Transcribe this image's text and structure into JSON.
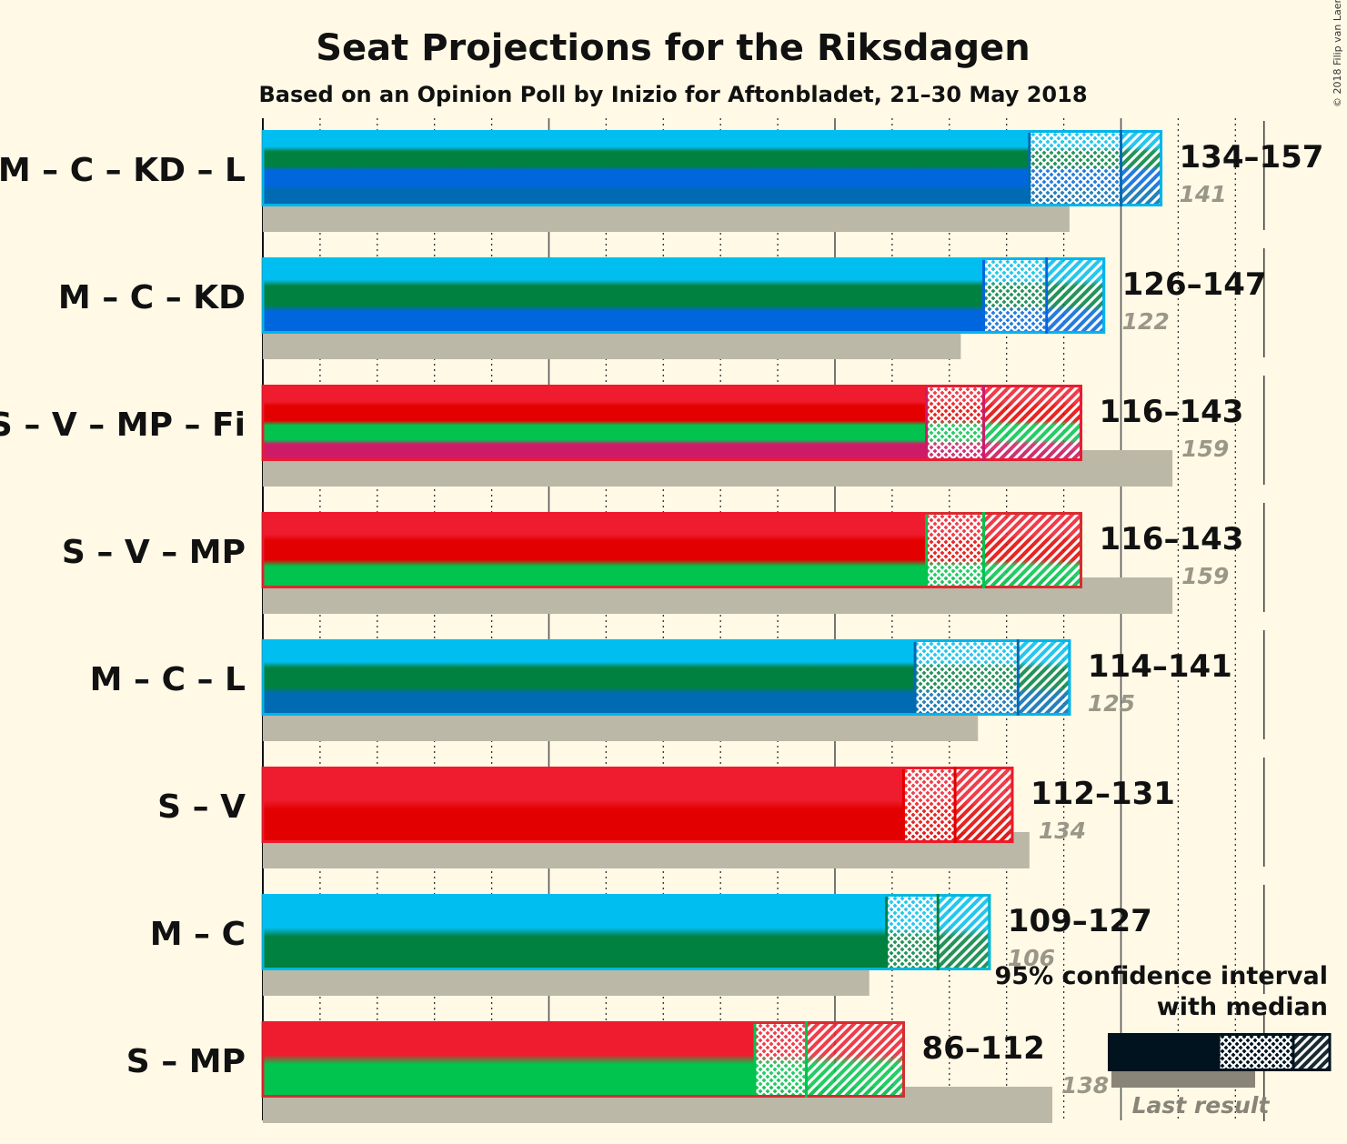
{
  "copyright": "© 2018 Filip van Laenen",
  "chart_data": {
    "type": "bar",
    "title": "Seat Projections for the Riksdagen",
    "subtitle": "Based on an Opinion Poll by Inizio for Aftonbladet, 21–30 May 2018",
    "majority_seats": 175,
    "x_range": [
      0,
      175
    ],
    "grid_step": 10,
    "major_grid_step": 50,
    "series": [
      {
        "label": "M – C – KD – L",
        "parties": [
          "M",
          "C",
          "KD",
          "L"
        ],
        "ci95": [
          134,
          157
        ],
        "median": 150,
        "ci_label": "134–157",
        "last_result": 141
      },
      {
        "label": "M – C – KD",
        "parties": [
          "M",
          "C",
          "KD"
        ],
        "ci95": [
          126,
          147
        ],
        "median": 137,
        "ci_label": "126–147",
        "last_result": 122
      },
      {
        "label": "S – V – MP – Fi",
        "parties": [
          "S",
          "V",
          "MP",
          "Fi"
        ],
        "ci95": [
          116,
          143
        ],
        "median": 126,
        "ci_label": "116–143",
        "last_result": 159
      },
      {
        "label": "S – V – MP",
        "parties": [
          "S",
          "V",
          "MP"
        ],
        "ci95": [
          116,
          143
        ],
        "median": 126,
        "ci_label": "116–143",
        "last_result": 159
      },
      {
        "label": "M – C – L",
        "parties": [
          "M",
          "C",
          "L"
        ],
        "ci95": [
          114,
          141
        ],
        "median": 132,
        "ci_label": "114–141",
        "last_result": 125
      },
      {
        "label": "S – V",
        "parties": [
          "S",
          "V"
        ],
        "ci95": [
          112,
          131
        ],
        "median": 121,
        "ci_label": "112–131",
        "last_result": 134
      },
      {
        "label": "M – C",
        "parties": [
          "M",
          "C"
        ],
        "ci95": [
          109,
          127
        ],
        "median": 118,
        "ci_label": "109–127",
        "last_result": 106
      },
      {
        "label": "S – MP",
        "parties": [
          "S",
          "MP"
        ],
        "ci95": [
          86,
          112
        ],
        "median": 95,
        "ci_label": "86–112",
        "last_result": 138
      }
    ],
    "party_colors": {
      "M": "#00BEF0",
      "C": "#008140",
      "KD": "#0066DD",
      "L": "#006AB3",
      "S": "#EE1C2E",
      "V": "#E30000",
      "MP": "#00C44E",
      "Fi": "#CD1B68"
    },
    "last_result_color": "#BCB8A8",
    "legend": {
      "line1": "95% confidence interval",
      "line2": "with median",
      "last_result_label": "Last result",
      "placement": "bottom-right"
    }
  }
}
